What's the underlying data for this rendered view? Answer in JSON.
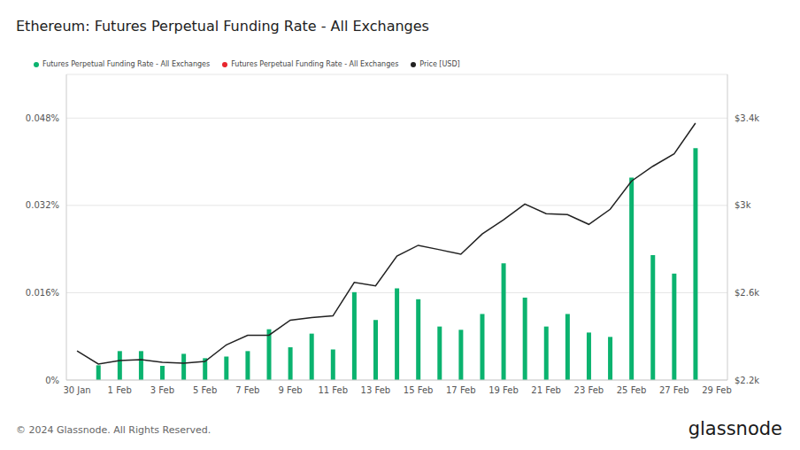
{
  "chart_data": {
    "type": "bar",
    "title": "Ethereum: Futures Perpetual Funding Rate - All Exchanges",
    "footer": "© 2024 Glassnode. All Rights Reserved.",
    "brand": "glassnode",
    "categories": [
      "30 Jan",
      null,
      "1 Feb",
      null,
      "3 Feb",
      null,
      "5 Feb",
      null,
      "7 Feb",
      null,
      "9 Feb",
      null,
      "11 Feb",
      null,
      "13 Feb",
      null,
      "15 Feb",
      null,
      "17 Feb",
      null,
      "19 Feb",
      null,
      "21 Feb",
      null,
      "23 Feb",
      null,
      "25 Feb",
      null,
      "27 Feb",
      null,
      "29 Feb"
    ],
    "series": [
      {
        "name": "Futures Perpetual Funding Rate - All Exchanges",
        "type": "bar",
        "color": "#0bb36f",
        "values": [
          null,
          0.0027,
          0.0053,
          0.0053,
          0.0026,
          0.0048,
          0.004,
          0.0043,
          0.0053,
          0.0093,
          0.006,
          0.0085,
          0.0056,
          0.0161,
          0.011,
          0.0168,
          0.0148,
          0.0098,
          0.0092,
          0.0121,
          0.0214,
          0.0151,
          0.0098,
          0.0121,
          0.0087,
          0.0079,
          0.0371,
          0.0229,
          0.0195,
          0.0425,
          null
        ]
      },
      {
        "name": "Futures Perpetual Funding Rate - All Exchanges",
        "type": "bar",
        "color": "#e8262e",
        "values": [
          null,
          null,
          null,
          null,
          null,
          null,
          null,
          null,
          null,
          null,
          null,
          null,
          null,
          null,
          null,
          null,
          null,
          null,
          null,
          null,
          null,
          null,
          null,
          null,
          null,
          null,
          null,
          null,
          null,
          null,
          null
        ]
      },
      {
        "name": "Price [USD]",
        "type": "line",
        "color": "#222222",
        "axis": "y2",
        "values": [
          2333,
          2273,
          2289,
          2293,
          2281,
          2277,
          2285,
          2361,
          2405,
          2405,
          2474,
          2486,
          2494,
          2647,
          2631,
          2768,
          2817,
          2797,
          2776,
          2869,
          2934,
          3006,
          2962,
          2958,
          2913,
          2982,
          3111,
          3179,
          3236,
          3377,
          null
        ]
      }
    ],
    "ylim": [
      0,
      0.056
    ],
    "yticks": [
      {
        "value": 0,
        "label": "0%"
      },
      {
        "value": 0.016,
        "label": "0.016%"
      },
      {
        "value": 0.032,
        "label": "0.032%"
      },
      {
        "value": 0.048,
        "label": "0.048%"
      }
    ],
    "y2lim": [
      2200,
      3600
    ],
    "y2ticks": [
      {
        "value": 2200,
        "label": "$2.2k"
      },
      {
        "value": 2600,
        "label": "$2.6k"
      },
      {
        "value": 3000,
        "label": "$3k"
      },
      {
        "value": 3400,
        "label": "$3.4k"
      }
    ],
    "grid": true,
    "legend": "top"
  }
}
